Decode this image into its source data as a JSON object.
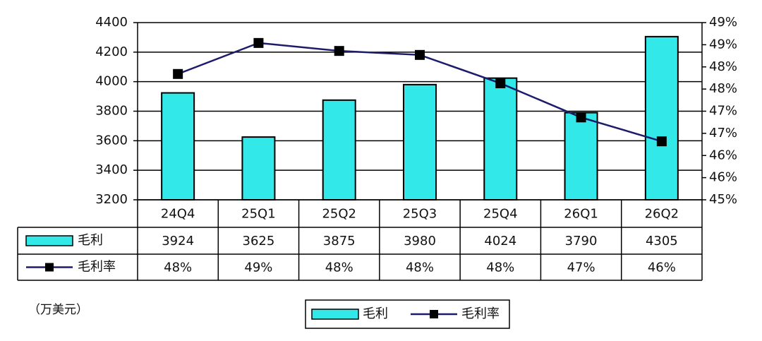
{
  "chart_data": {
    "type": "bar",
    "categories": [
      "24Q4",
      "25Q1",
      "25Q2",
      "25Q3",
      "25Q4",
      "26Q1",
      "26Q2"
    ],
    "series": [
      {
        "name": "毛利",
        "type": "bar",
        "color": "#33e8e8",
        "values": [
          3924,
          3625,
          3875,
          3980,
          4024,
          3790,
          4305
        ]
      },
      {
        "name": "毛利率",
        "type": "line",
        "color": "#1c1c6b",
        "axis": "y2",
        "values": [
          47.84,
          48.54,
          48.36,
          48.27,
          47.63,
          46.86,
          46.32
        ],
        "value_labels": [
          "48%",
          "49%",
          "48%",
          "48%",
          "48%",
          "47%",
          "46%"
        ]
      }
    ],
    "ylim": [
      3200,
      4400
    ],
    "yticks": [
      3200,
      3400,
      3600,
      3800,
      4000,
      4200,
      4400
    ],
    "y2lim": [
      45,
      49
    ],
    "y2ticks": [
      {
        "value": 45,
        "label": "45%"
      },
      {
        "value": 45.5,
        "label": "46%"
      },
      {
        "value": 46,
        "label": "46%"
      },
      {
        "value": 46.5,
        "label": "47%"
      },
      {
        "value": 47,
        "label": "47%"
      },
      {
        "value": 47.5,
        "label": "48%"
      },
      {
        "value": 48,
        "label": "48%"
      },
      {
        "value": 48.5,
        "label": "49%"
      },
      {
        "value": 49,
        "label": "49%"
      }
    ],
    "grid": true,
    "note": "（万美元）"
  }
}
